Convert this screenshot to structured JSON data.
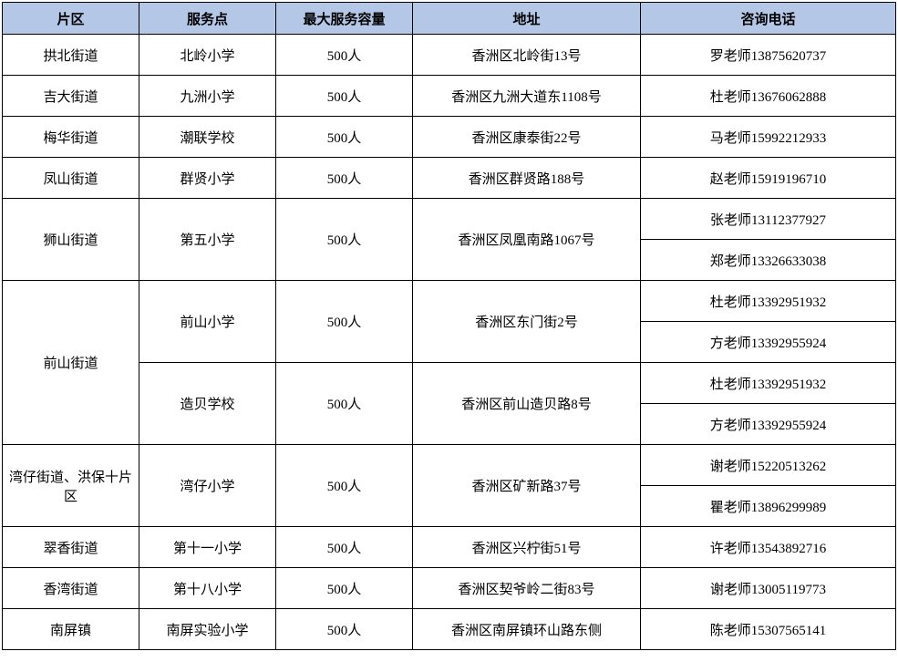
{
  "columns": [
    "片区",
    "服务点",
    "最大服务容量",
    "地址",
    "咨询电话"
  ],
  "header_bg": "#b4c7e7",
  "border_color": "#000000",
  "font_size": 15,
  "rows": [
    {
      "area": "拱北街道",
      "point": "北岭小学",
      "capacity": "500人",
      "address": "香洲区北岭街13号",
      "phones": [
        "罗老师13875620737"
      ]
    },
    {
      "area": "吉大街道",
      "point": "九洲小学",
      "capacity": "500人",
      "address": "香洲区九洲大道东1108号",
      "phones": [
        "杜老师13676062888"
      ]
    },
    {
      "area": "梅华街道",
      "point": "潮联学校",
      "capacity": "500人",
      "address": "香洲区康泰街22号",
      "phones": [
        "马老师15992212933"
      ]
    },
    {
      "area": "凤山街道",
      "point": "群贤小学",
      "capacity": "500人",
      "address": "香洲区群贤路188号",
      "phones": [
        "赵老师15919196710"
      ]
    },
    {
      "area": "狮山街道",
      "point": "第五小学",
      "capacity": "500人",
      "address": "香洲区凤凰南路1067号",
      "phones": [
        "张老师13112377927",
        "郑老师13326633038"
      ]
    },
    {
      "area": "前山街道",
      "points": [
        {
          "point": "前山小学",
          "capacity": "500人",
          "address": "香洲区东门街2号",
          "phones": [
            "杜老师13392951932",
            "方老师13392955924"
          ]
        },
        {
          "point": "造贝学校",
          "capacity": "500人",
          "address": "香洲区前山造贝路8号",
          "phones": [
            "杜老师13392951932",
            "方老师13392955924"
          ]
        }
      ]
    },
    {
      "area": "湾仔街道、洪保十片区",
      "point": "湾仔小学",
      "capacity": "500人",
      "address": "香洲区矿新路37号",
      "phones": [
        "谢老师15220513262",
        "瞿老师13896299989"
      ]
    },
    {
      "area": "翠香街道",
      "point": "第十一小学",
      "capacity": "500人",
      "address": "香洲区兴柠街51号",
      "phones": [
        "许老师13543892716"
      ]
    },
    {
      "area": "香湾街道",
      "point": "第十八小学",
      "capacity": "500人",
      "address": "香洲区契爷岭二街83号",
      "phones": [
        "谢老师13005119773"
      ]
    },
    {
      "area": "南屏镇",
      "point": "南屏实验小学",
      "capacity": "500人",
      "address": "香洲区南屏镇环山路东侧",
      "phones": [
        "陈老师15307565141"
      ]
    }
  ]
}
